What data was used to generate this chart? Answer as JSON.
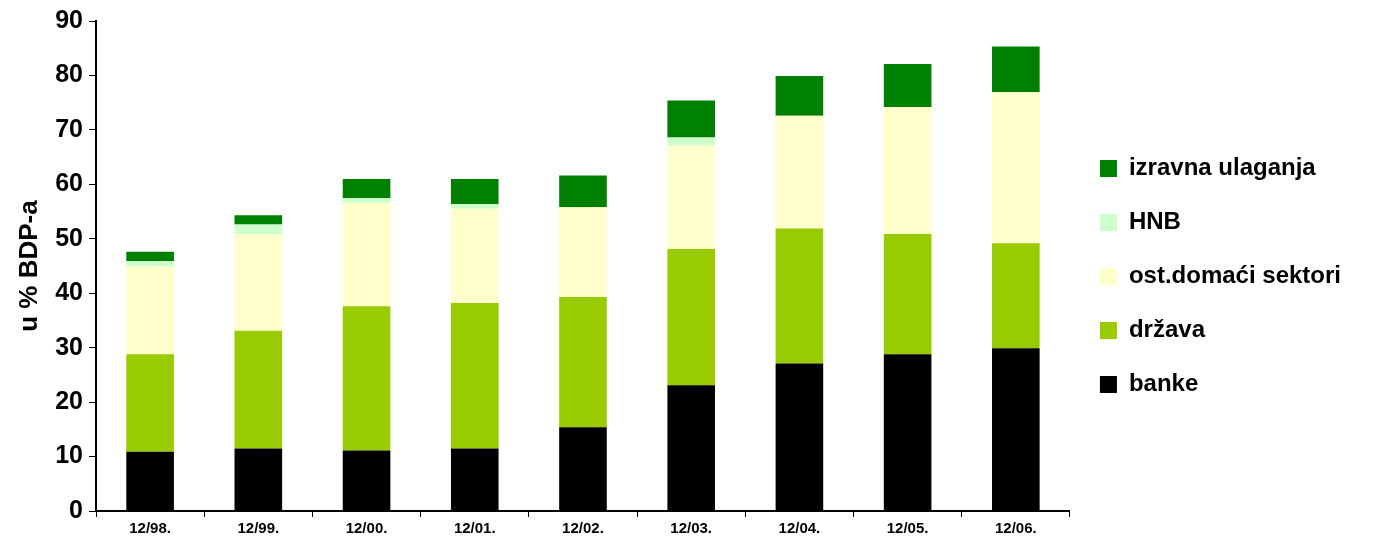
{
  "chart_data": {
    "type": "bar",
    "stacked": true,
    "ylabel": "u % BDP-a",
    "categories": [
      "12/98.",
      "12/99.",
      "12/00.",
      "12/01.",
      "12/02.",
      "12/03.",
      "12/04.",
      "12/05.",
      "12/06."
    ],
    "series": [
      {
        "name": "banke",
        "color": "#000000",
        "values": [
          10.9,
          11.5,
          11.1,
          11.5,
          15.4,
          23.1,
          27.1,
          28.8,
          29.9
        ]
      },
      {
        "name": "država",
        "color": "#99cc00",
        "values": [
          17.9,
          21.6,
          26.5,
          26.7,
          23.9,
          25.0,
          24.8,
          22.1,
          19.3
        ]
      },
      {
        "name": "ost.domaći sektori",
        "color": "#ffffcc",
        "values": [
          16.1,
          17.8,
          19.0,
          17.3,
          16.5,
          19.0,
          20.7,
          23.3,
          27.7
        ]
      },
      {
        "name": "HNB",
        "color": "#ccffcc",
        "values": [
          1.0,
          1.7,
          0.9,
          0.9,
          0,
          1.5,
          0,
          0,
          0
        ]
      },
      {
        "name": "izravna ulaganja",
        "color": "#008000",
        "values": [
          1.7,
          1.7,
          3.5,
          4.6,
          5.8,
          6.8,
          7.3,
          7.9,
          8.4
        ]
      }
    ],
    "ylim": [
      0,
      90
    ],
    "yticks": [
      0,
      10,
      20,
      30,
      40,
      50,
      60,
      70,
      80,
      90
    ],
    "grid": false,
    "legend": "right"
  }
}
